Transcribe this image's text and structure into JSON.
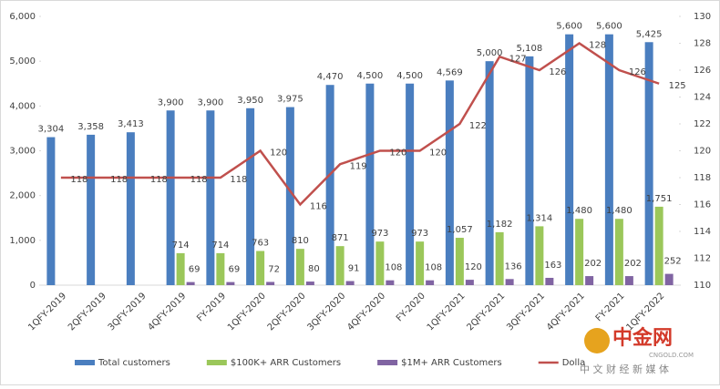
{
  "chart_data": {
    "type": "bar-line",
    "categories": [
      "1QFY-2019",
      "2QFY-2019",
      "3QFY-2019",
      "4QFY-2019",
      "FY-2019",
      "1QFY-2020",
      "2QFY-2020",
      "3QFY-2020",
      "4QFY-2020",
      "FY-2020",
      "1QFY-2021",
      "2QFY-2021",
      "3QFY-2021",
      "4QFY-2021",
      "FY-2021",
      "1QFY-2022"
    ],
    "series": [
      {
        "name": "Total customers",
        "type": "bar",
        "color": "#4a7ebf",
        "values": [
          3304,
          3358,
          3413,
          3900,
          3900,
          3950,
          3975,
          4470,
          4500,
          4500,
          4569,
          5000,
          5108,
          5600,
          5600,
          5425
        ],
        "value_labels": [
          "3,304",
          "3,358",
          "3,413",
          "3,900",
          "3,900",
          "3,950",
          "3,975",
          "4,470",
          "4,500",
          "4,500",
          "4,569",
          "5,000",
          "5,108",
          "5,600",
          "5,600",
          "5,425"
        ]
      },
      {
        "name": "$100K+ ARR Customers",
        "type": "bar",
        "color": "#9bc75a",
        "values": [
          null,
          null,
          null,
          714,
          714,
          763,
          810,
          871,
          973,
          973,
          1057,
          1182,
          1314,
          1480,
          1480,
          1751
        ],
        "value_labels": [
          null,
          null,
          null,
          "714",
          "714",
          "763",
          "810",
          "871",
          "973",
          "973",
          "1,057",
          "1,182",
          "1,314",
          "1,480",
          "1,480",
          "1,751"
        ]
      },
      {
        "name": "$1M+ ARR Customers",
        "type": "bar",
        "color": "#8064a2",
        "values": [
          null,
          null,
          null,
          69,
          69,
          72,
          80,
          91,
          108,
          108,
          120,
          136,
          163,
          202,
          202,
          252
        ]
      },
      {
        "name": "Dolla",
        "type": "line",
        "axis": "y2",
        "color": "#c0504d",
        "values": [
          118,
          118,
          118,
          118,
          118,
          120,
          116,
          119,
          120,
          120,
          122,
          127,
          126,
          128,
          126,
          125
        ]
      }
    ],
    "ylim": [
      0,
      6000
    ],
    "yticks": [
      0,
      {
        "value": 1000,
        "label": "1,000"
      },
      {
        "value": 2000,
        "label": "2,000"
      },
      {
        "value": 3000,
        "label": "3,000"
      },
      {
        "value": 4000,
        "label": "4,000"
      },
      {
        "value": 5000,
        "label": "5,000"
      },
      {
        "value": 6000,
        "label": "6,000"
      }
    ],
    "y2lim": [
      110,
      130
    ],
    "y2ticks": [
      110,
      112,
      114,
      116,
      118,
      120,
      122,
      124,
      126,
      128,
      130
    ],
    "legend": "bottom",
    "watermark": {
      "logo": "中金网",
      "site": "CNGOLD.COM",
      "slogan": "中 文 财 经 新 媒 体"
    }
  }
}
